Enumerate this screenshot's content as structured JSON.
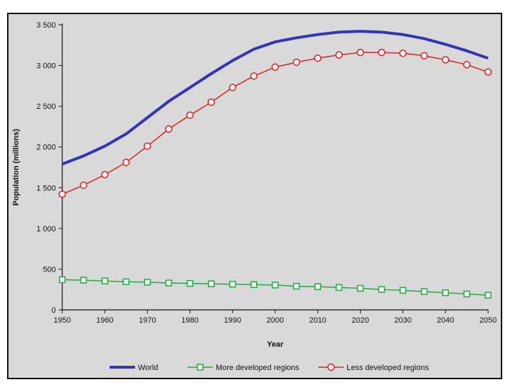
{
  "chart_data": {
    "type": "line",
    "xlabel": "Year",
    "ylabel": "Population (millions)",
    "x": [
      1950,
      1955,
      1960,
      1965,
      1970,
      1975,
      1980,
      1985,
      1990,
      1995,
      2000,
      2005,
      2010,
      2015,
      2020,
      2025,
      2030,
      2035,
      2040,
      2045,
      2050
    ],
    "xlim": [
      1950,
      2050
    ],
    "ylim": [
      0,
      3500
    ],
    "x_ticks": [
      1950,
      1960,
      1970,
      1980,
      1990,
      2000,
      2010,
      2020,
      2030,
      2040,
      2050
    ],
    "x_tick_labels": [
      "1950",
      "1960",
      "1970",
      "1980",
      "1990",
      "2000",
      "2010",
      "2020",
      "2030",
      "2040",
      "2050"
    ],
    "y_ticks": [
      0,
      500,
      1000,
      1500,
      2000,
      2500,
      3000,
      3500
    ],
    "y_tick_labels": [
      "0",
      "500",
      "1 000",
      "1 500",
      "2 000",
      "2 500",
      "3 000",
      "3 500"
    ],
    "grid": false,
    "legend_position": "bottom",
    "series": [
      {
        "name": "World",
        "color": "#3333bb",
        "marker": "none",
        "values": [
          1790,
          1890,
          2010,
          2160,
          2360,
          2560,
          2730,
          2900,
          3060,
          3200,
          3290,
          3340,
          3380,
          3410,
          3420,
          3410,
          3380,
          3330,
          3260,
          3180,
          3090
        ]
      },
      {
        "name": "More developed regions",
        "color": "#22aa44",
        "marker": "square",
        "values": [
          370,
          365,
          355,
          345,
          340,
          330,
          325,
          320,
          315,
          310,
          305,
          290,
          285,
          275,
          265,
          250,
          240,
          225,
          210,
          195,
          180
        ]
      },
      {
        "name": "Less developed regions",
        "color": "#dd2222",
        "marker": "circle",
        "values": [
          1420,
          1530,
          1660,
          1810,
          2010,
          2220,
          2390,
          2550,
          2730,
          2870,
          2980,
          3040,
          3090,
          3130,
          3160,
          3160,
          3150,
          3120,
          3070,
          3010,
          2920
        ]
      }
    ]
  }
}
